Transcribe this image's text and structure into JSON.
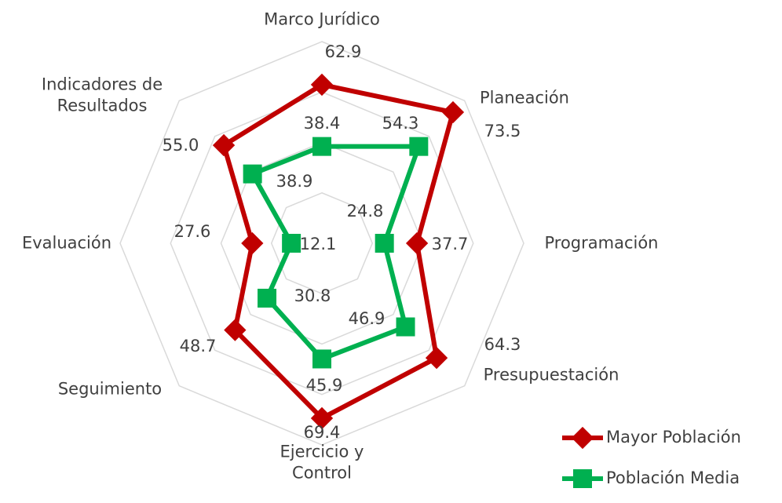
{
  "chart_data": {
    "type": "radar",
    "categories": [
      "Marco Jurídico",
      "Planeación",
      "Programación",
      "Presupuestación",
      "Ejercicio y Control",
      "Seguimiento",
      "Evaluación",
      "Indicadores de Resultados"
    ],
    "rlim": [
      0,
      80
    ],
    "rticks": [
      0,
      20,
      40,
      60,
      80
    ],
    "grid": true,
    "legend": "lower right",
    "series": [
      {
        "name": "Mayor Población",
        "color": "#C00000",
        "values": [
          62.9,
          73.5,
          37.7,
          64.3,
          69.4,
          48.7,
          27.6,
          55.0
        ],
        "value_labels": [
          "62.9",
          "73.5",
          "37.7",
          "64.3",
          "69.4",
          "48.7",
          "27.6",
          "55.0"
        ]
      },
      {
        "name": "Población Media",
        "color": "#00B050",
        "values": [
          38.4,
          54.3,
          24.8,
          46.9,
          45.9,
          30.8,
          12.1,
          38.9
        ],
        "value_labels": [
          "38.4",
          "54.3",
          "24.8",
          "46.9",
          "45.9",
          "30.8",
          "12.1",
          "38.9"
        ]
      }
    ]
  }
}
